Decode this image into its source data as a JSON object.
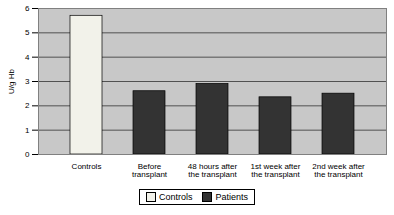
{
  "chart_data": {
    "type": "bar",
    "categories": [
      "Controls",
      "Before transplant",
      "48 hours after the transplant",
      "1st week after the transplant",
      "2nd week after the transplant"
    ],
    "series": [
      {
        "name": "Controls",
        "color": "#f2f2ea",
        "values": [
          5.7,
          null,
          null,
          null,
          null
        ]
      },
      {
        "name": "Patients",
        "color": "#333333",
        "values": [
          null,
          2.6,
          2.9,
          2.35,
          2.5
        ]
      }
    ],
    "y_label": "U/g Hb",
    "ylim": [
      0,
      6
    ],
    "yticks": [
      0,
      1,
      2,
      3,
      4,
      5,
      6
    ],
    "grid": true,
    "legend": "bottom"
  }
}
